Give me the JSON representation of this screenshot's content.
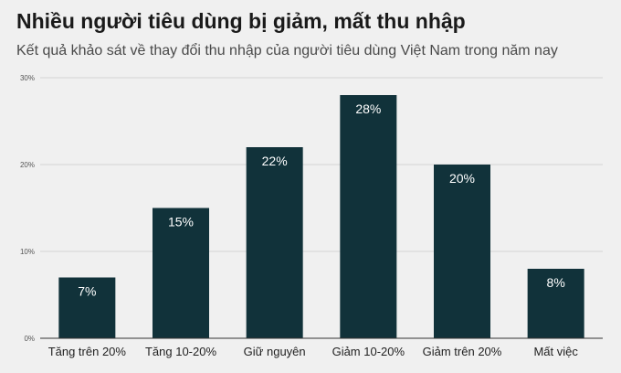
{
  "title": "Nhiều người tiêu dùng bị giảm, mất thu nhập",
  "subtitle": "Kết quả khảo sát về thay đổi thu nhập của người tiêu dùng Việt Nam trong năm nay",
  "colors": {
    "bar": "#11323a"
  },
  "chart_data": {
    "type": "bar",
    "categories": [
      "Tăng trên 20%",
      "Tăng 10-20%",
      "Giữ nguyên",
      "Giảm 10-20%",
      "Giảm trên 20%",
      "Mất việc"
    ],
    "values": [
      7,
      15,
      22,
      28,
      20,
      8
    ],
    "data_labels": [
      "7%",
      "15%",
      "22%",
      "28%",
      "20%",
      "8%"
    ],
    "yticks": [
      0,
      10,
      20,
      30
    ],
    "ytick_labels": [
      "0%",
      "10%",
      "20%",
      "30%"
    ],
    "ylim": [
      0,
      30
    ],
    "grid": true,
    "legend": "none"
  }
}
